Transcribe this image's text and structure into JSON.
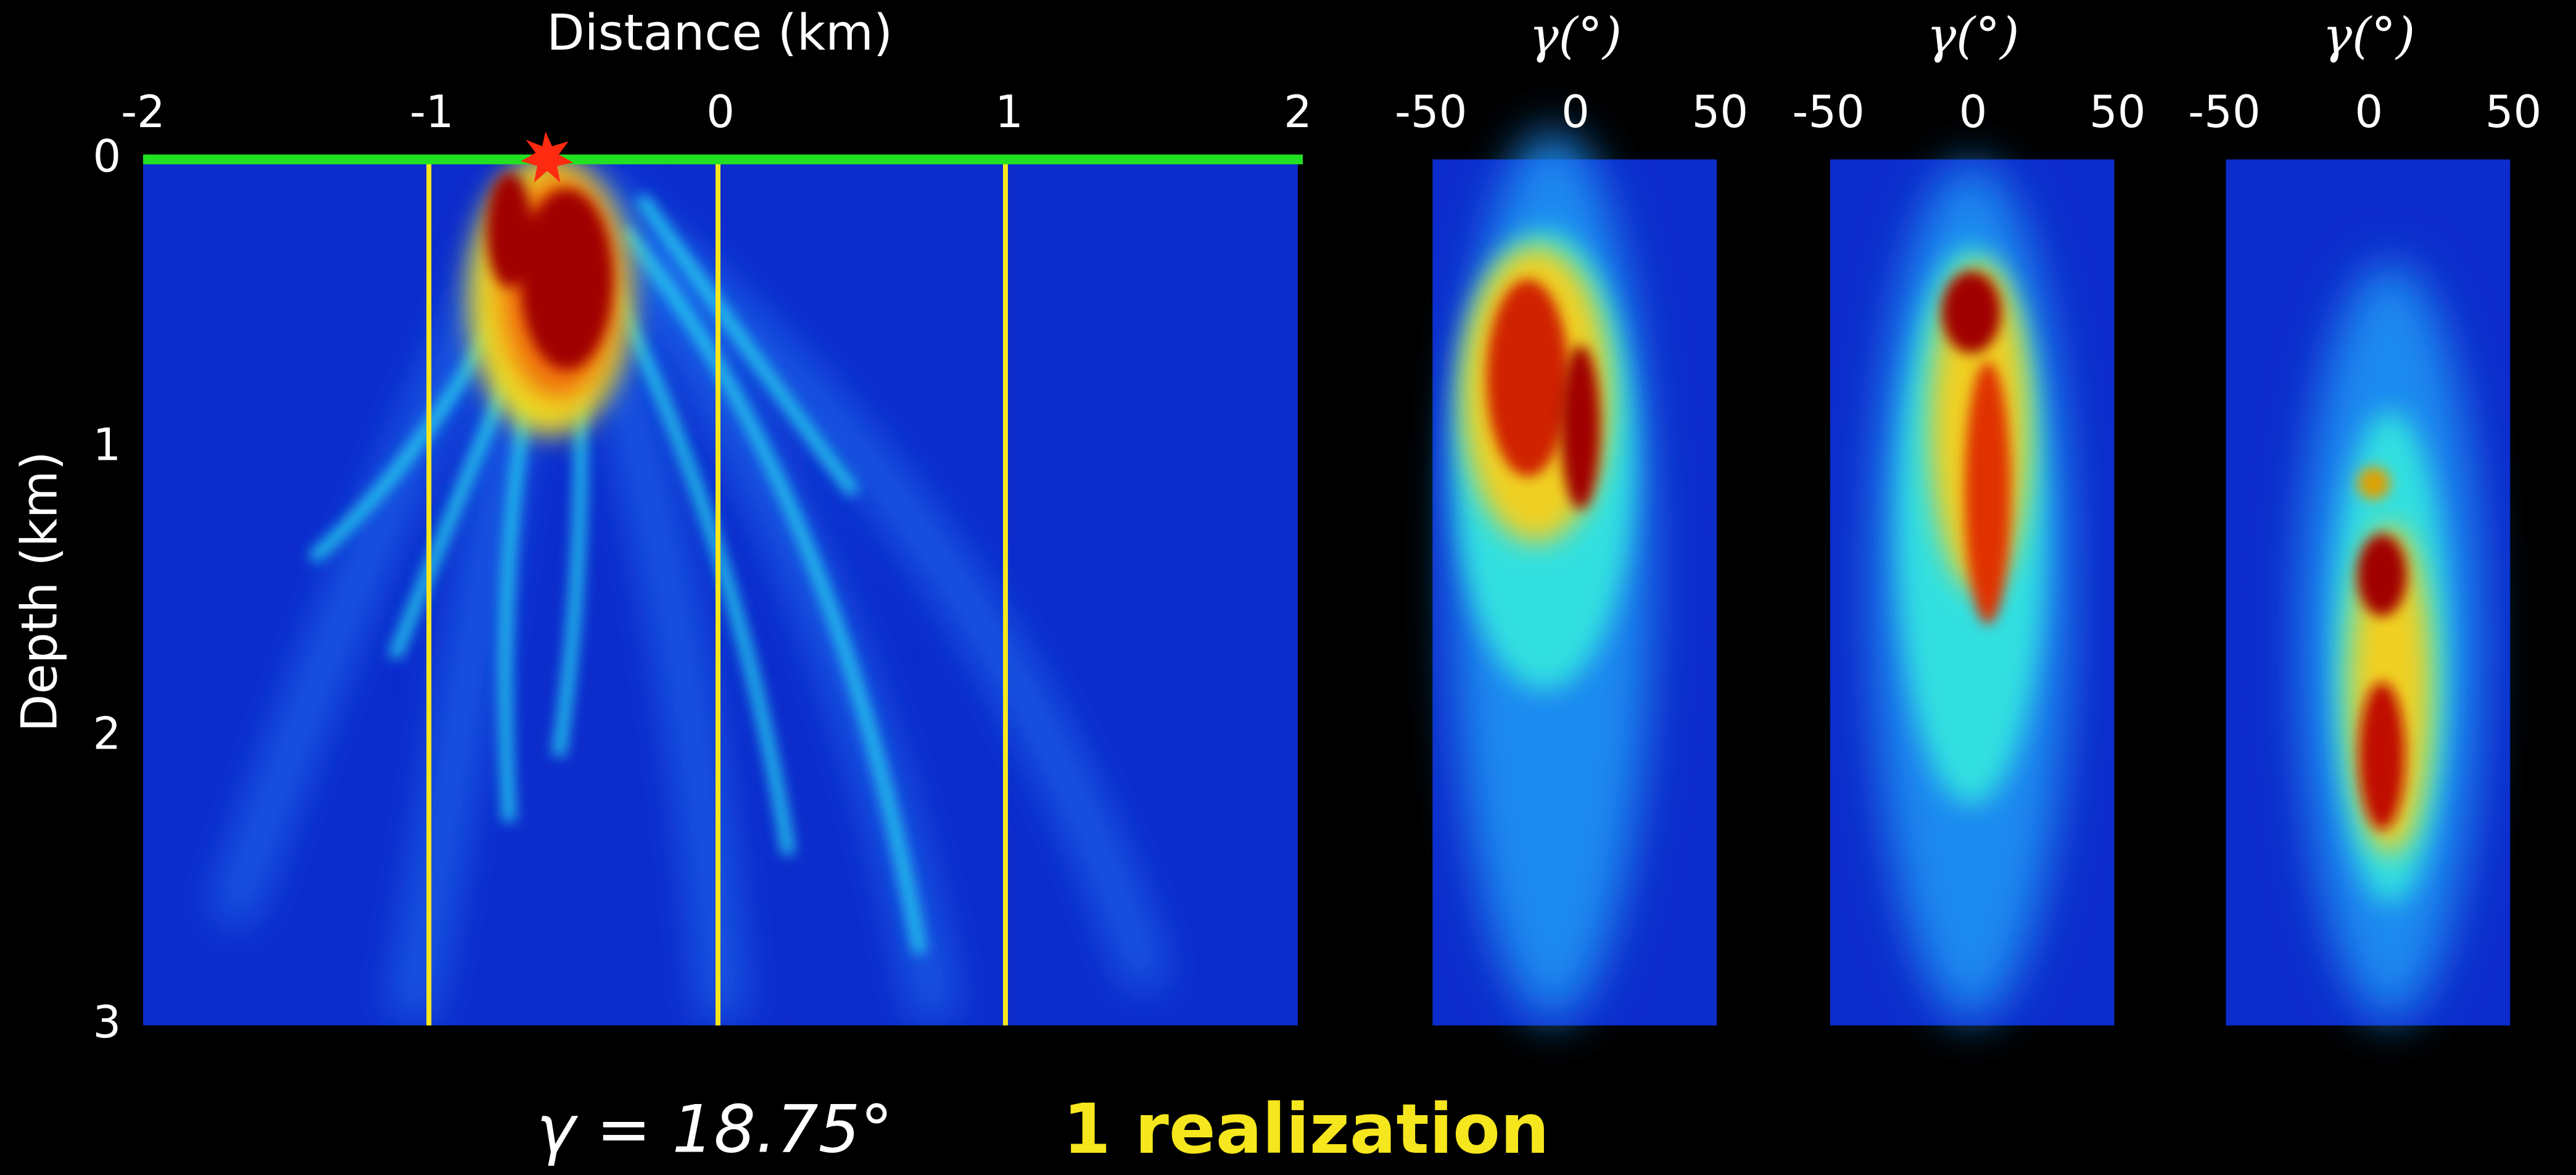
{
  "main_panel": {
    "x_label": "Distance (km)",
    "y_label": "Depth (km)",
    "x_ticks": [
      -2,
      -1,
      0,
      1,
      2
    ],
    "y_ticks": [
      0,
      1,
      2,
      3
    ]
  },
  "angle_panels": [
    {
      "x_label": "γ(°)",
      "x_ticks": [
        -50,
        0,
        50
      ]
    },
    {
      "x_label": "γ(°)",
      "x_ticks": [
        -50,
        0,
        50
      ]
    },
    {
      "x_label": "γ(°)",
      "x_ticks": [
        -50,
        0,
        50
      ]
    }
  ],
  "caption": {
    "equation": "γ = 18.75°",
    "note": "1 realization"
  }
}
